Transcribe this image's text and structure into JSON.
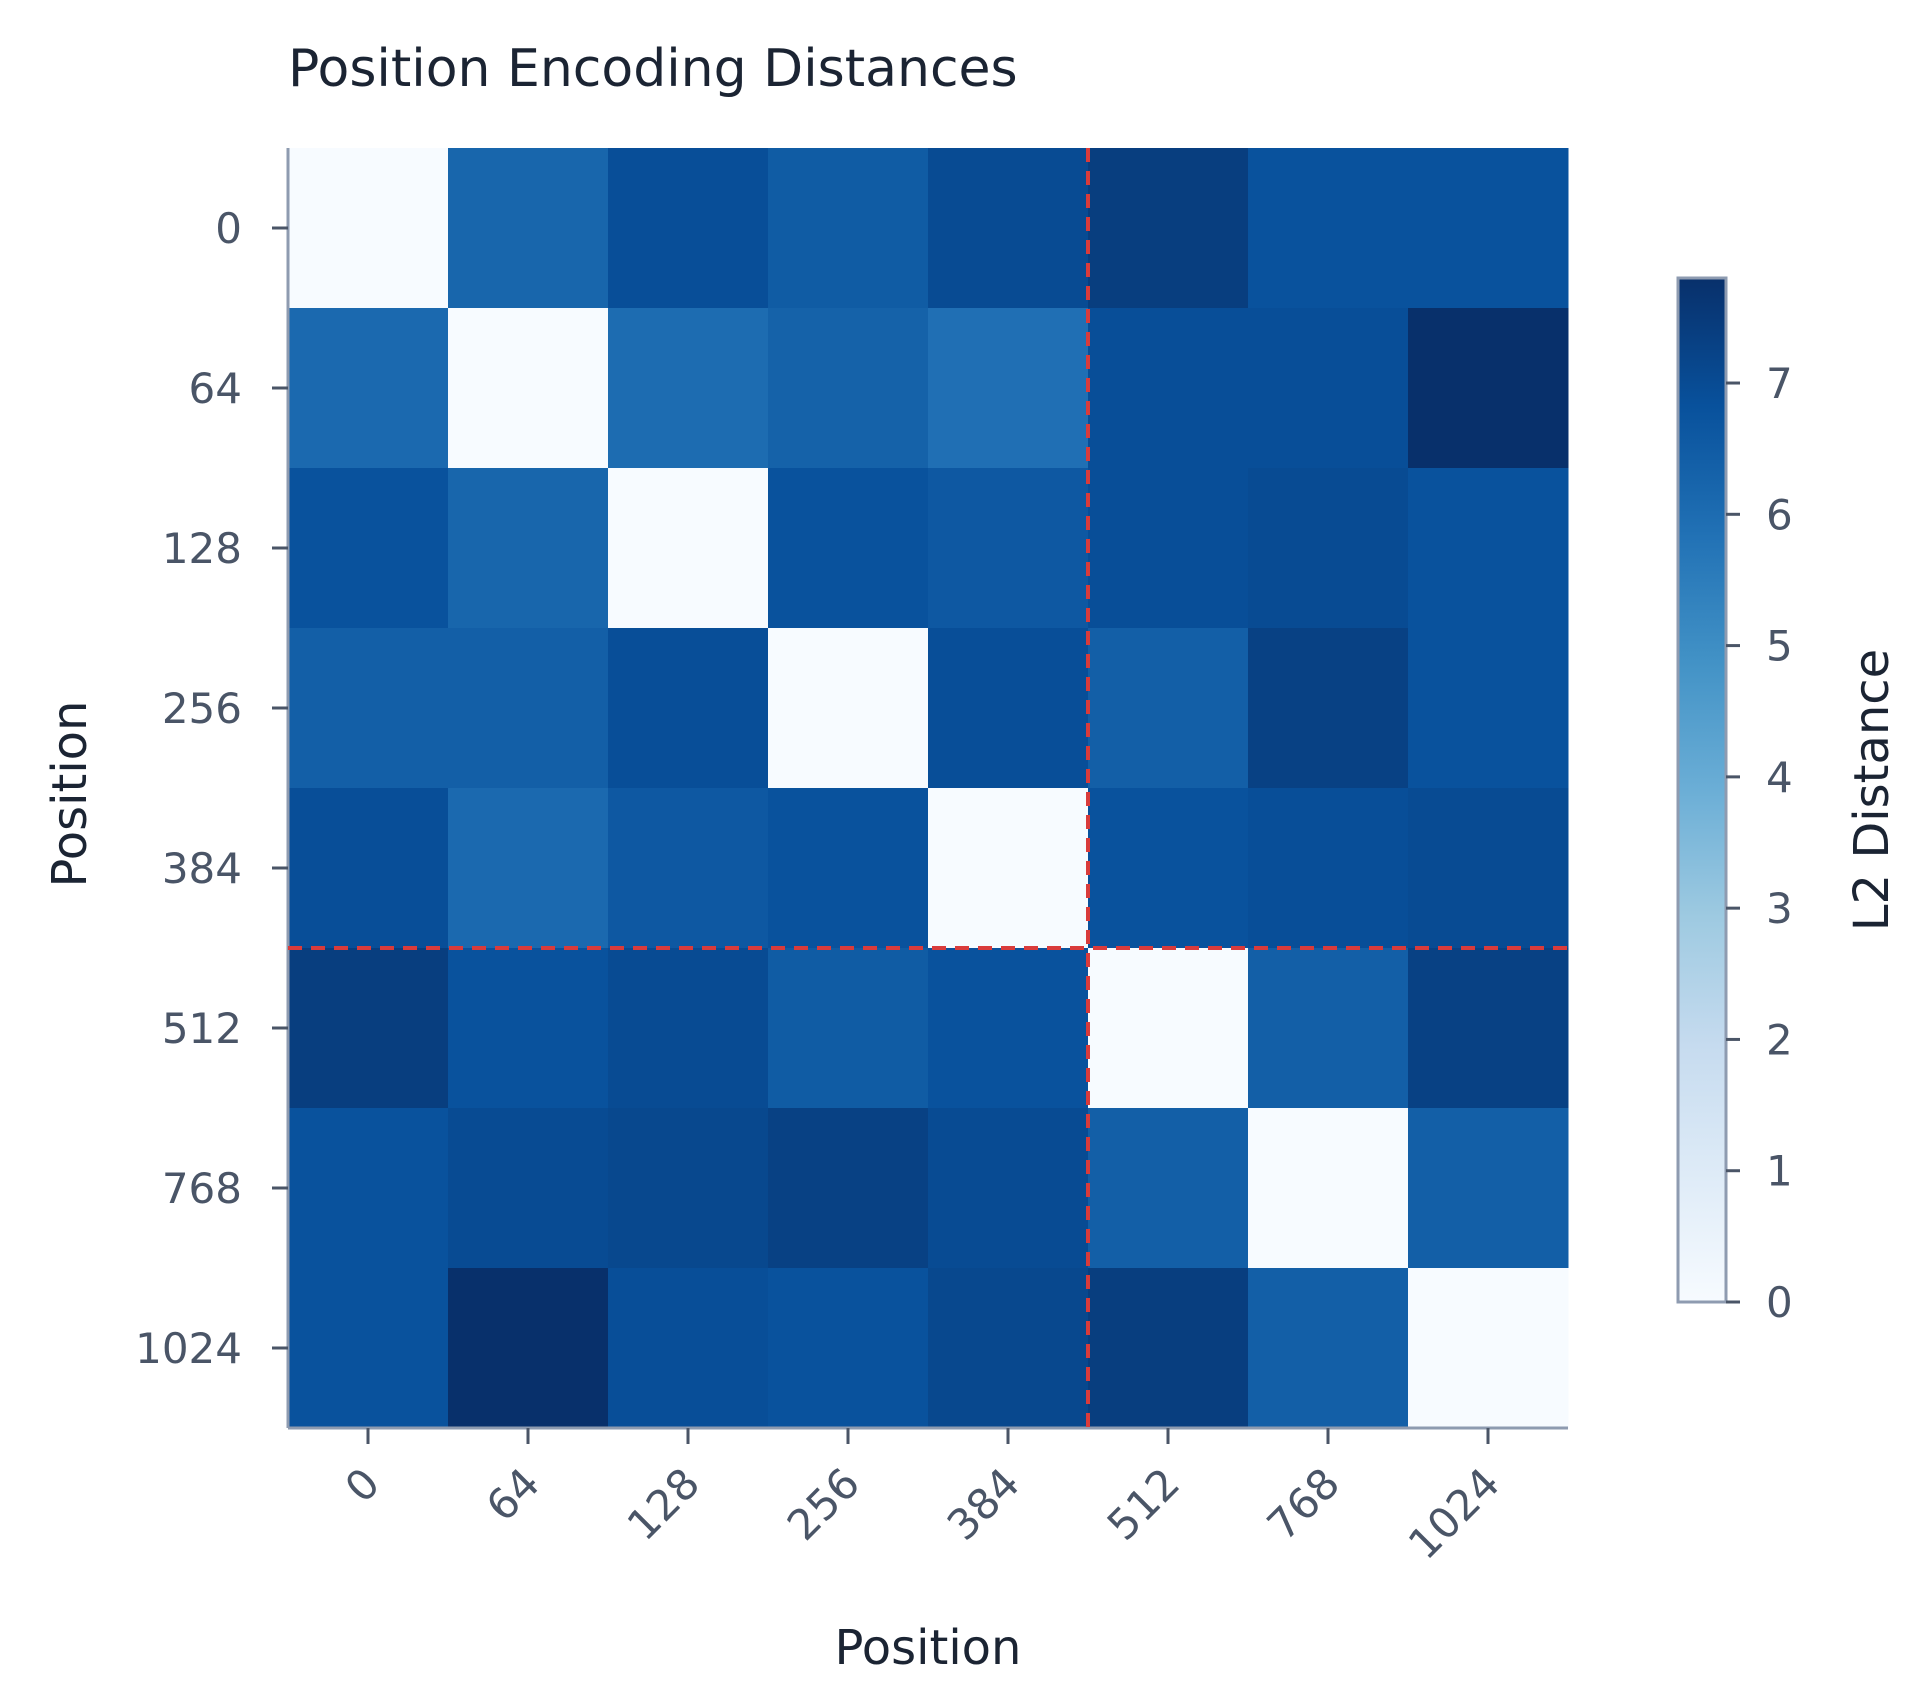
{
  "chart_data": {
    "type": "heatmap",
    "title": "Position Encoding Distances",
    "xlabel": "Position",
    "ylabel": "Position",
    "x_categories": [
      "0",
      "64",
      "128",
      "256",
      "384",
      "512",
      "768",
      "1024"
    ],
    "y_categories": [
      "0",
      "64",
      "128",
      "256",
      "384",
      "512",
      "768",
      "1024"
    ],
    "values": [
      [
        0.0,
        6.2,
        6.9,
        6.5,
        7.0,
        7.4,
        6.8,
        6.8
      ],
      [
        6.1,
        0.0,
        6.0,
        6.3,
        5.9,
        6.9,
        6.9,
        7.8
      ],
      [
        6.8,
        6.2,
        0.0,
        6.8,
        6.6,
        6.9,
        7.0,
        6.8
      ],
      [
        6.4,
        6.4,
        6.9,
        0.0,
        6.9,
        6.4,
        7.3,
        6.8
      ],
      [
        6.9,
        6.1,
        6.6,
        6.8,
        0.0,
        6.8,
        6.9,
        7.0
      ],
      [
        7.4,
        6.8,
        7.0,
        6.5,
        6.8,
        0.0,
        6.4,
        7.3
      ],
      [
        6.8,
        7.0,
        7.1,
        7.3,
        7.0,
        6.4,
        0.0,
        6.4
      ],
      [
        6.8,
        7.8,
        6.9,
        6.8,
        7.1,
        7.4,
        6.4,
        0.0
      ]
    ],
    "colorscale": "Blues",
    "colorbar": {
      "label": "L2 Distance",
      "range": [
        0,
        7.8
      ],
      "ticks": [
        0,
        1,
        2,
        3,
        4,
        5,
        6,
        7
      ]
    },
    "reference_lines": {
      "color": "#d93b3b",
      "style": "dashed",
      "vertical_between": [
        "384",
        "512"
      ],
      "horizontal_between": [
        "384",
        "512"
      ]
    },
    "grid": false
  }
}
